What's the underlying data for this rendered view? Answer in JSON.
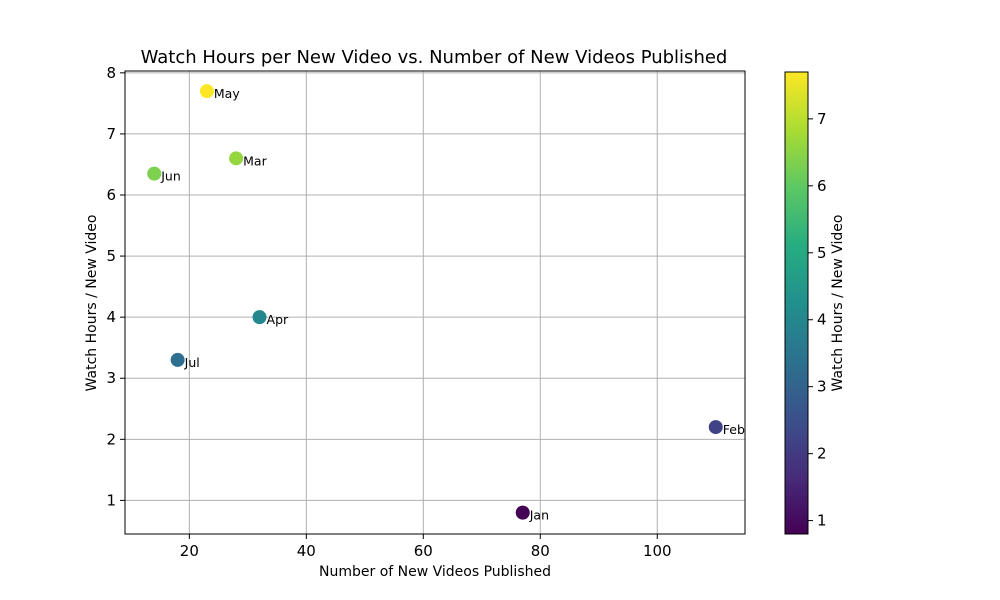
{
  "chart_data": {
    "type": "scatter",
    "title": "Watch Hours per New Video vs. Number of New Videos Published",
    "xlabel": "Number of New Videos Published",
    "ylabel": "Watch Hours / New Video",
    "xlim": [
      9,
      115
    ],
    "ylim": [
      0.45,
      8.03
    ],
    "xticks": [
      20,
      40,
      60,
      80,
      100
    ],
    "yticks": [
      1,
      2,
      3,
      4,
      5,
      6,
      7,
      8
    ],
    "grid": true,
    "points": [
      {
        "label": "Jan",
        "x": 77,
        "y": 0.8
      },
      {
        "label": "Feb",
        "x": 110,
        "y": 2.2
      },
      {
        "label": "Mar",
        "x": 28,
        "y": 6.6
      },
      {
        "label": "Apr",
        "x": 32,
        "y": 4.0
      },
      {
        "label": "May",
        "x": 23,
        "y": 7.7
      },
      {
        "label": "Jun",
        "x": 14,
        "y": 6.35
      },
      {
        "label": "Jul",
        "x": 18,
        "y": 3.3
      }
    ],
    "colorbar": {
      "label": "Watch Hours / New Video",
      "colormap": "viridis",
      "range": [
        0.8,
        7.7
      ],
      "ticks": [
        1,
        2,
        3,
        4,
        5,
        6,
        7
      ]
    }
  }
}
